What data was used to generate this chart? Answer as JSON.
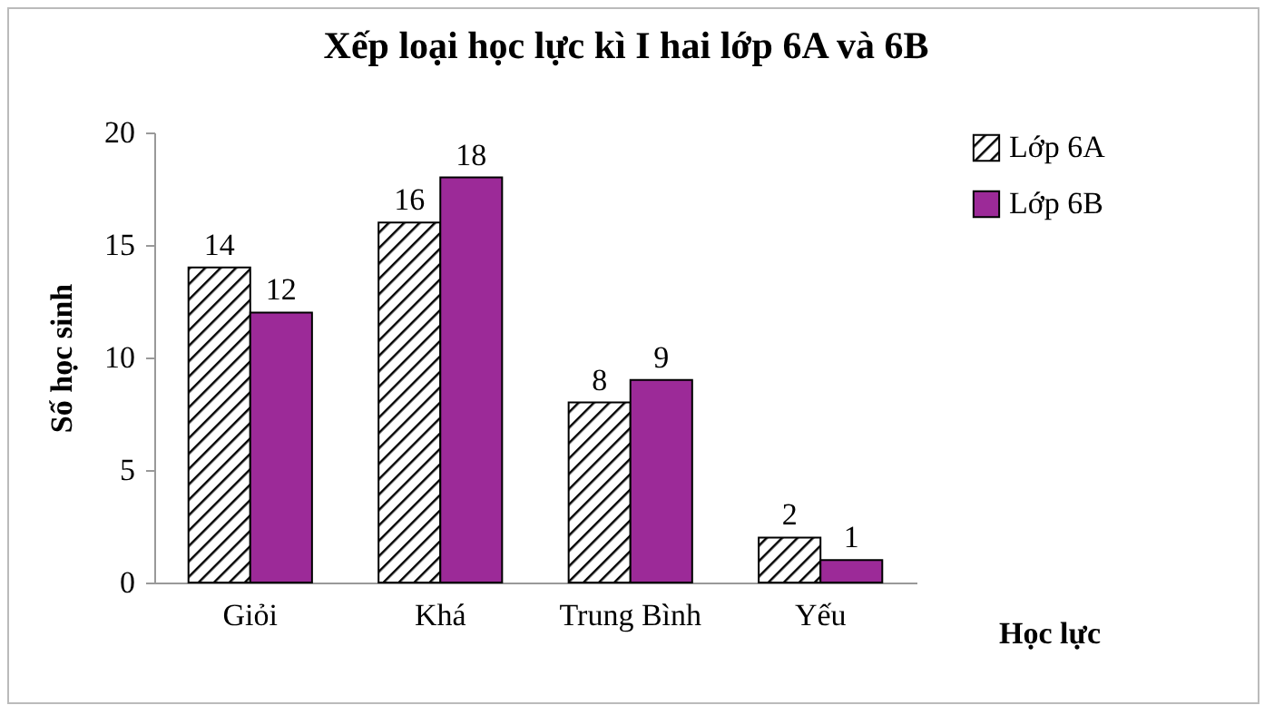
{
  "chart_data": {
    "type": "bar",
    "title": "Xếp loại học lực kì I hai lớp 6A và 6B",
    "xlabel": "Học lực",
    "ylabel": "Số học sinh",
    "categories": [
      "Giỏi",
      "Khá",
      "Trung Bình",
      "Yếu"
    ],
    "series": [
      {
        "name": "Lớp 6A",
        "color": "#000000",
        "values": [
          14,
          16,
          8,
          2
        ]
      },
      {
        "name": "Lớp 6B",
        "color": "#9c2a98",
        "values": [
          12,
          18,
          9,
          1
        ]
      }
    ],
    "ylim": [
      0,
      20
    ],
    "yticks": [
      0,
      5,
      10,
      15,
      20
    ],
    "grid": false,
    "legend": "right",
    "data_labels": true
  }
}
